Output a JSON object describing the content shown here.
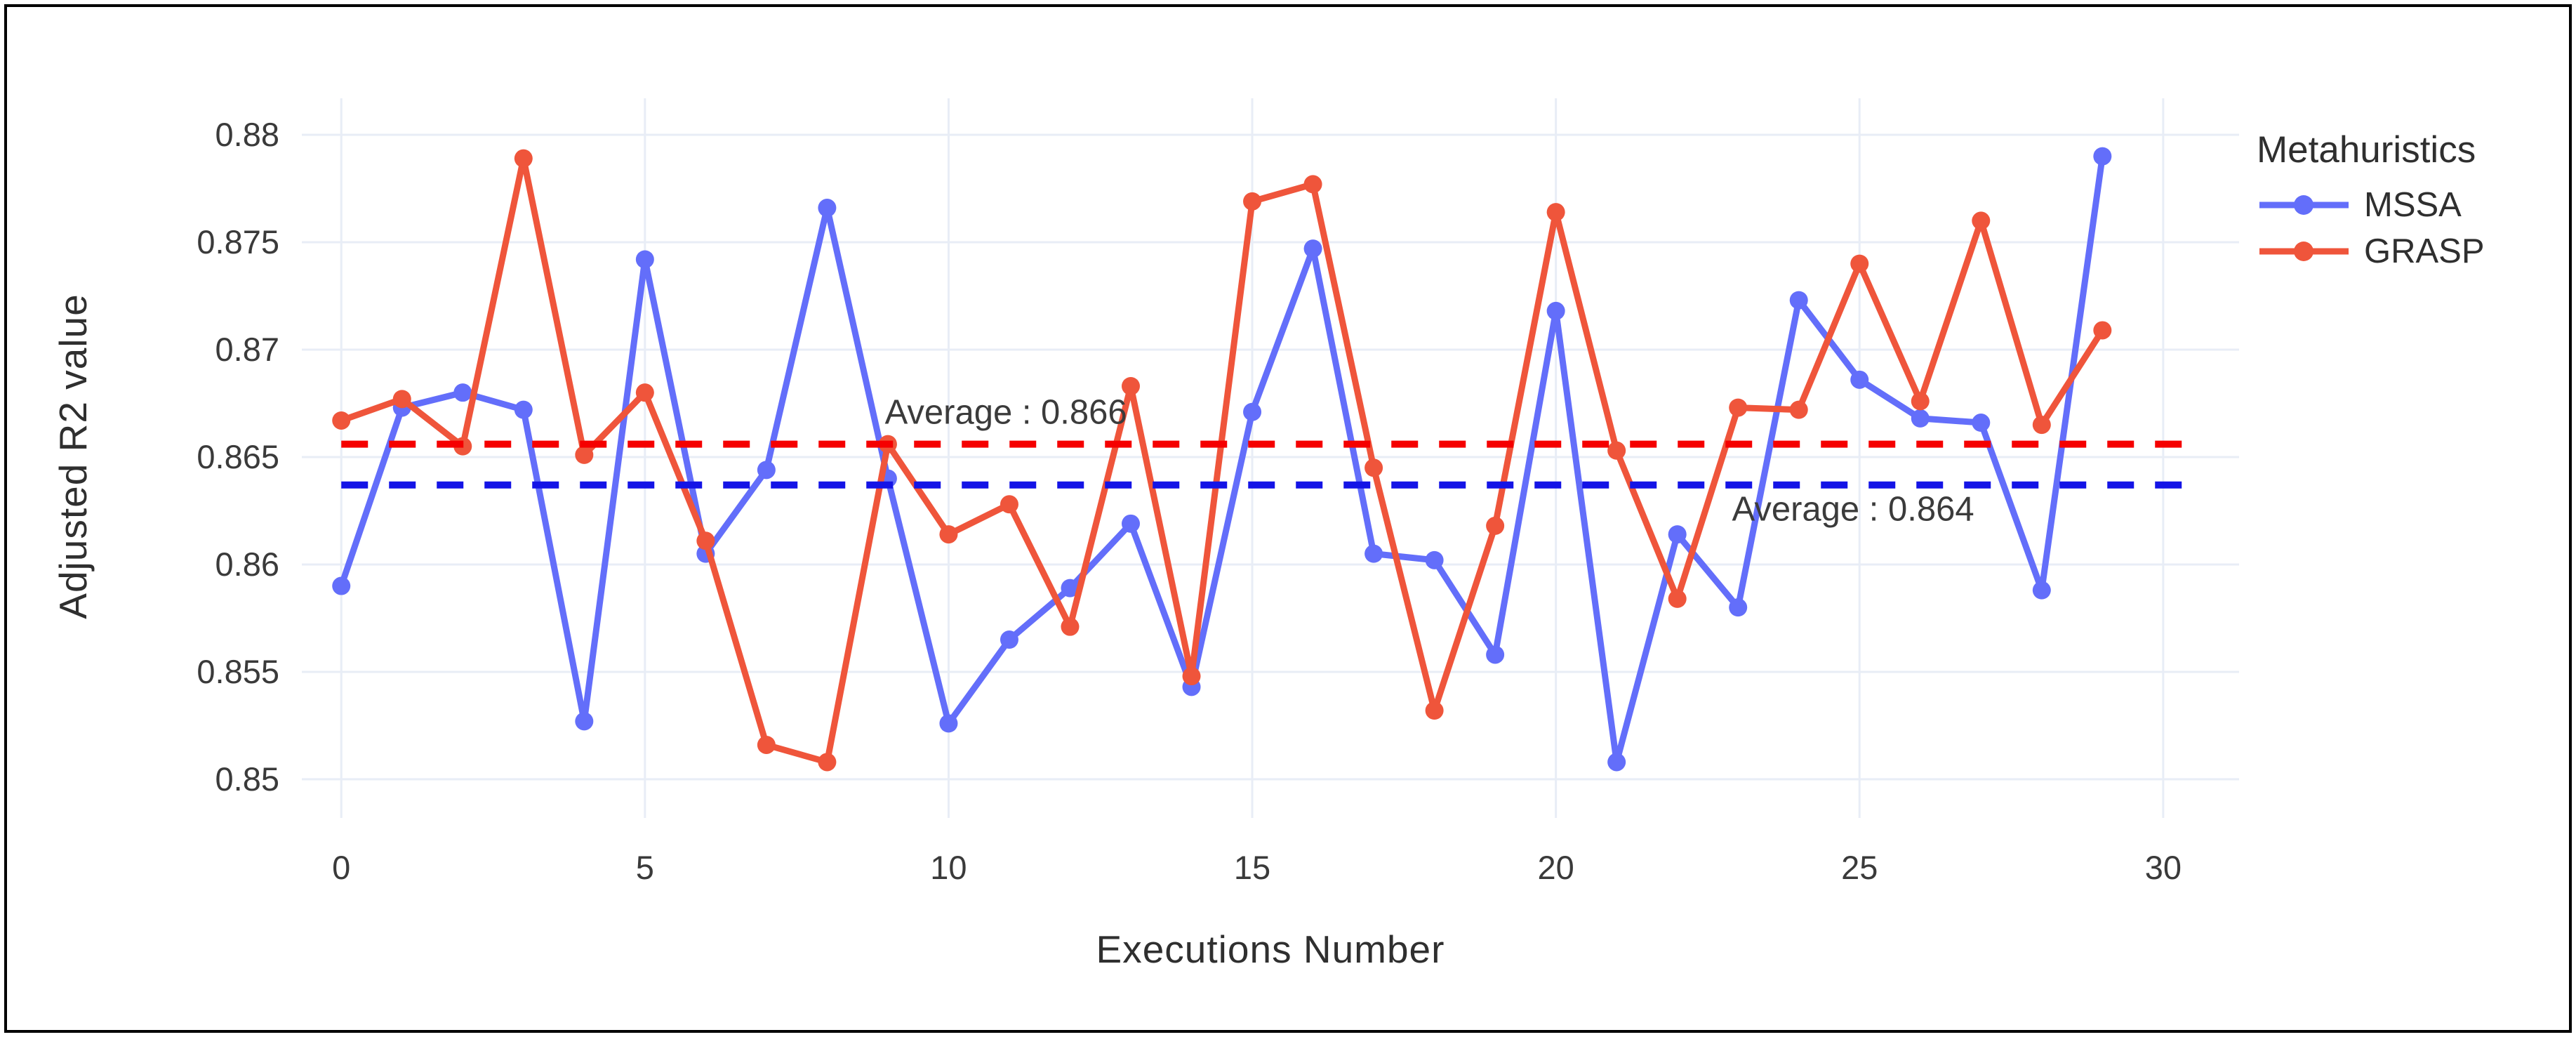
{
  "chart_data": {
    "type": "line",
    "title": "",
    "xlabel": "Executions Number",
    "ylabel": "Adjusted R2 value",
    "legend_title": "Metahuristics",
    "legend_position": "right",
    "grid": true,
    "xlim": [
      -0.65,
      31.25
    ],
    "ylim": [
      0.8482,
      0.8817
    ],
    "x_ticks": [
      0,
      5,
      10,
      15,
      20,
      25,
      30
    ],
    "y_ticks": [
      0.85,
      0.855,
      0.86,
      0.865,
      0.87,
      0.875,
      0.88
    ],
    "y_tick_labels": [
      "0.85",
      "0.855",
      "0.86",
      "0.865",
      "0.87",
      "0.875",
      "0.88"
    ],
    "x": [
      0,
      1,
      2,
      3,
      4,
      5,
      6,
      7,
      8,
      9,
      10,
      11,
      12,
      13,
      14,
      15,
      16,
      17,
      18,
      19,
      20,
      21,
      22,
      23,
      24,
      25,
      26,
      27,
      28,
      29
    ],
    "series": [
      {
        "name": "MSSA",
        "color": "#636EFA",
        "values": [
          0.859,
          0.8673,
          0.868,
          0.8672,
          0.8527,
          0.8742,
          0.8605,
          0.8644,
          0.8766,
          0.864,
          0.8526,
          0.8565,
          0.8589,
          0.8619,
          0.8543,
          0.8671,
          0.8747,
          0.8605,
          0.8602,
          0.8558,
          0.8718,
          0.8508,
          0.8614,
          0.858,
          0.8723,
          0.8686,
          0.8668,
          0.8666,
          0.8588,
          0.879
        ]
      },
      {
        "name": "GRASP",
        "color": "#EF553B",
        "values": [
          0.8667,
          0.8677,
          0.8655,
          0.8789,
          0.8651,
          0.868,
          0.8611,
          0.8516,
          0.8508,
          0.8656,
          0.8614,
          0.8628,
          0.8571,
          0.8683,
          0.8548,
          0.8769,
          0.8777,
          0.8645,
          0.8532,
          0.8618,
          0.8764,
          0.8653,
          0.8584,
          0.8673,
          0.8672,
          0.874,
          0.8676,
          0.876,
          0.8665,
          0.8709
        ]
      }
    ],
    "average_lines": [
      {
        "label": "Average : 0.866",
        "value": 0.8656,
        "color": "#F50000",
        "dash_span": [
          0,
          30.55
        ],
        "annotation_x": 8.95,
        "annotation_y": 0.8671
      },
      {
        "label": "Average : 0.864",
        "value": 0.8637,
        "color": "#1414E6",
        "dash_span": [
          0,
          30.55
        ],
        "annotation_x": 22.9,
        "annotation_y": 0.8626
      }
    ],
    "style": {
      "grid_color": "#E8EDF6",
      "tick_color": "#3a3a3a",
      "annotation_color": "#3b3b3b",
      "background": "#FFFFFF",
      "frame_border": "#000000"
    }
  }
}
